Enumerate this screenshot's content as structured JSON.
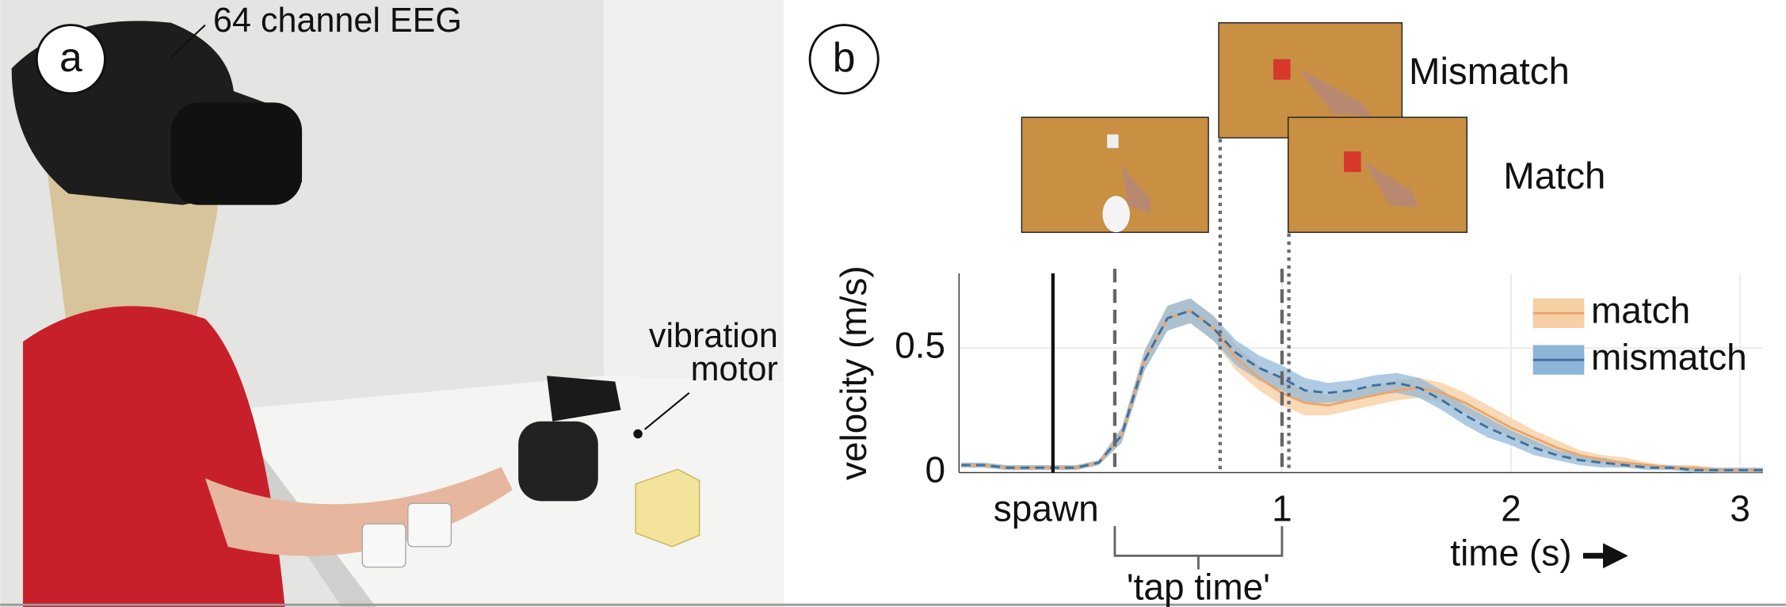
{
  "panel_a": {
    "label": "a",
    "eeg_label": "64 channel EEG",
    "motor_label": [
      "vibration",
      "motor"
    ]
  },
  "panel_b": {
    "label": "b",
    "mismatch_label": "Mismatch",
    "match_label": "Match"
  },
  "chart_data": {
    "type": "line",
    "xlabel": "time (s)",
    "ylabel": "velocity (m/s)",
    "xlim": [
      -0.41,
      3.1
    ],
    "ylim": [
      0,
      0.8
    ],
    "xticks": [
      1,
      2,
      3
    ],
    "yticks": [
      0,
      0.5
    ],
    "grid": true,
    "legend": "upper right",
    "spawn": {
      "label": "spawn",
      "x": 0
    },
    "tap_time": {
      "label": "'tap time'",
      "range": [
        0.27,
        1.0
      ]
    },
    "event_lines": [
      0.73,
      1.03
    ],
    "x": [
      -0.4,
      -0.3,
      -0.2,
      -0.1,
      0,
      0.1,
      0.2,
      0.3,
      0.4,
      0.5,
      0.6,
      0.7,
      0.8,
      0.9,
      1.0,
      1.1,
      1.2,
      1.3,
      1.4,
      1.5,
      1.6,
      1.7,
      1.8,
      1.9,
      2.0,
      2.1,
      2.2,
      2.3,
      2.4,
      2.5,
      2.6,
      2.7,
      2.8,
      2.9,
      3.0,
      3.1
    ],
    "series": [
      {
        "name": "match",
        "color": "#e9a66b",
        "band_color": "#f7cfa4",
        "values": [
          0.03,
          0.03,
          0.02,
          0.02,
          0.02,
          0.02,
          0.04,
          0.15,
          0.45,
          0.62,
          0.65,
          0.58,
          0.46,
          0.38,
          0.32,
          0.28,
          0.27,
          0.29,
          0.31,
          0.33,
          0.34,
          0.32,
          0.28,
          0.23,
          0.18,
          0.14,
          0.1,
          0.07,
          0.05,
          0.04,
          0.03,
          0.02,
          0.02,
          0.01,
          0.01,
          0.01
        ],
        "errors": [
          0.01,
          0.01,
          0.01,
          0.01,
          0.01,
          0.01,
          0.01,
          0.03,
          0.04,
          0.05,
          0.05,
          0.05,
          0.05,
          0.05,
          0.05,
          0.05,
          0.04,
          0.04,
          0.04,
          0.04,
          0.04,
          0.04,
          0.04,
          0.04,
          0.04,
          0.03,
          0.03,
          0.02,
          0.02,
          0.02,
          0.01,
          0.01,
          0.01,
          0.01,
          0.01,
          0.01
        ]
      },
      {
        "name": "mismatch",
        "color": "#3f6f9c",
        "band_color": "#8db5d8",
        "values": [
          0.03,
          0.03,
          0.02,
          0.02,
          0.02,
          0.02,
          0.04,
          0.15,
          0.45,
          0.62,
          0.65,
          0.58,
          0.48,
          0.42,
          0.38,
          0.33,
          0.32,
          0.33,
          0.35,
          0.36,
          0.34,
          0.29,
          0.23,
          0.18,
          0.14,
          0.1,
          0.07,
          0.05,
          0.04,
          0.03,
          0.02,
          0.02,
          0.01,
          0.01,
          0.01,
          0.01
        ],
        "errors": [
          0.01,
          0.01,
          0.01,
          0.01,
          0.01,
          0.01,
          0.01,
          0.03,
          0.04,
          0.05,
          0.05,
          0.05,
          0.05,
          0.05,
          0.05,
          0.05,
          0.04,
          0.04,
          0.04,
          0.04,
          0.04,
          0.04,
          0.04,
          0.04,
          0.03,
          0.03,
          0.02,
          0.02,
          0.02,
          0.01,
          0.01,
          0.01,
          0.01,
          0.01,
          0.01,
          0.01
        ]
      }
    ]
  }
}
